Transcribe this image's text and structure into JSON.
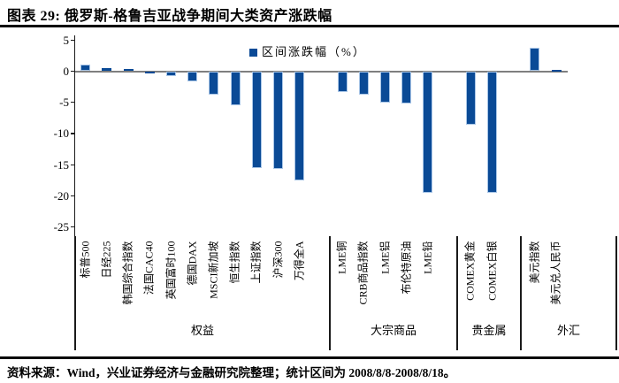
{
  "figure": {
    "title": "图表 29: 俄罗斯-格鲁吉亚战争期间大类资产涨跌幅",
    "source_note": "资料来源：Wind，兴业证券经济与金融研究院整理；统计区间为 2008/8/8-2008/8/18。"
  },
  "chart_data": {
    "type": "bar",
    "legend_label": "区间涨跌幅（%）",
    "legend_position": "top-center",
    "ylim": [
      -25,
      5
    ],
    "yticks": [
      5,
      0,
      -5,
      -10,
      -15,
      -20,
      -25
    ],
    "grid": false,
    "bar_color": "#0a4a96",
    "bar_edge_color": "#a9c6e7",
    "zero_line_color": "#7f7f7f",
    "groups": [
      {
        "label": "权益",
        "categories": [
          "标普500",
          "日经225",
          "韩国综合指数",
          "法国CAC40",
          "英国富时100",
          "德国DAX",
          "MSCI新加坡",
          "恒生指数",
          "上证指数",
          "沪深300",
          "万得全A"
        ],
        "values": [
          1.1,
          0.5,
          0.4,
          -0.3,
          -0.8,
          -1.7,
          -3.7,
          -5.5,
          -15.5,
          -15.7,
          -17.5
        ]
      },
      {
        "label": "大宗商品",
        "categories": [
          "LME铜",
          "CRB商品指数",
          "LME铝",
          "布伦特原油",
          "LME铅"
        ],
        "values": [
          -3.3,
          -3.8,
          -5.0,
          -5.2,
          -19.6
        ]
      },
      {
        "label": "贵金属",
        "categories": [
          "COMEX黄金",
          "COMEX白银"
        ],
        "values": [
          -8.6,
          -19.5
        ]
      },
      {
        "label": "外汇",
        "categories": [
          "美元指数",
          "美元兑人民币"
        ],
        "values": [
          3.7,
          0.2
        ]
      }
    ]
  }
}
